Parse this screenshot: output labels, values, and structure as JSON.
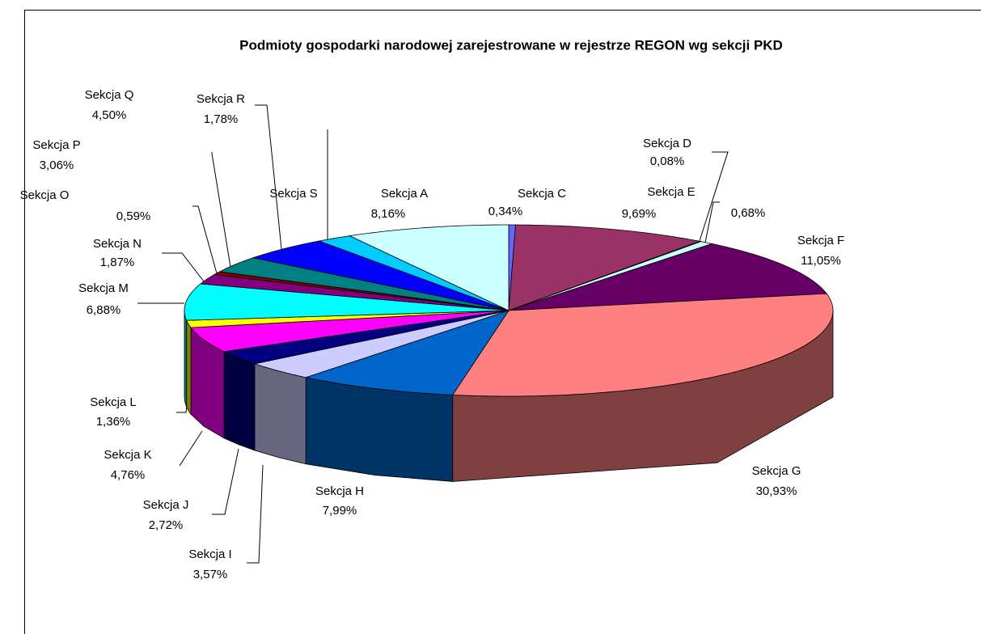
{
  "chart_data": {
    "type": "pie3d",
    "title": "Podmioty gospodarki narodowej zarejestrowane w rejestrze REGON wg sekcji PKD",
    "categories": [
      null,
      "Sekcja C",
      "Sekcja D",
      "Sekcja E",
      "Sekcja F",
      "Sekcja G",
      "Sekcja H",
      "Sekcja I",
      "Sekcja J",
      "Sekcja K",
      "Sekcja L",
      "Sekcja M",
      "Sekcja N",
      "Sekcja O",
      "Sekcja P",
      "Sekcja Q",
      "Sekcja R",
      "Sekcja A"
    ],
    "values": [
      0.34,
      9.69,
      0.08,
      0.68,
      11.05,
      30.93,
      7.99,
      3.57,
      2.72,
      4.76,
      1.36,
      6.88,
      1.87,
      0.59,
      3.06,
      4.5,
      1.78,
      8.16
    ],
    "value_labels": [
      "0,34%",
      "9,69%",
      "0,08%",
      "0,68%",
      "11,05%",
      "30,93%",
      "7,99%",
      "3,57%",
      "2,72%",
      "4,76%",
      "1,36%",
      "6,88%",
      "1,87%",
      "0,59%",
      "3,06%",
      "4,50%",
      "1,78%",
      "8,16%"
    ],
    "colors": [
      "#6666ff",
      "#993366",
      "#ffffcc",
      "#ccffff",
      "#660066",
      "#ff8080",
      "#0066cc",
      "#ccccff",
      "#000080",
      "#ff00ff",
      "#ffff00",
      "#00ffff",
      "#800080",
      "#800000",
      "#008080",
      "#0000ff",
      "#00ccff",
      "#ccffff"
    ],
    "annotations": [
      "Sekcja S"
    ]
  }
}
